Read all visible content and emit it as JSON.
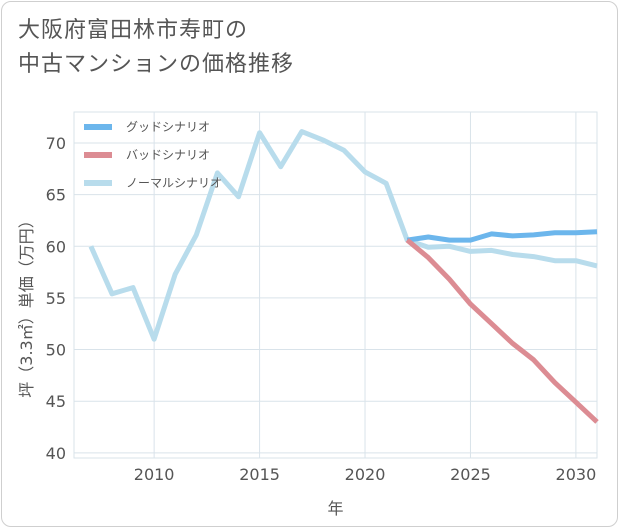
{
  "title_lines": [
    "大阪府富田林市寿町の",
    "中古マンションの価格推移"
  ],
  "chart_data": {
    "type": "line",
    "title": "大阪府富田林市寿町の中古マンションの価格推移",
    "xlabel": "年",
    "ylabel": "坪（3.3㎡）単価（万円）",
    "xlim": [
      2006.2,
      2031
    ],
    "ylim": [
      39.5,
      73
    ],
    "xticks": [
      2010,
      2015,
      2020,
      2025,
      2030
    ],
    "yticks": [
      40,
      45,
      50,
      55,
      60,
      65,
      70
    ],
    "legend_position": "top-left",
    "series": [
      {
        "name": "グッドシナリオ",
        "color": "#6cb6ec",
        "points": [
          [
            2022,
            60.6
          ],
          [
            2023,
            60.9
          ],
          [
            2024,
            60.6
          ],
          [
            2025,
            60.6
          ],
          [
            2026,
            61.2
          ],
          [
            2027,
            61.0
          ],
          [
            2028,
            61.1
          ],
          [
            2029,
            61.3
          ],
          [
            2030,
            61.3
          ],
          [
            2031,
            61.4
          ]
        ]
      },
      {
        "name": "バッドシナリオ",
        "color": "#dc8c93",
        "points": [
          [
            2022,
            60.6
          ],
          [
            2023,
            58.9
          ],
          [
            2024,
            56.8
          ],
          [
            2025,
            54.4
          ],
          [
            2026,
            52.5
          ],
          [
            2027,
            50.6
          ],
          [
            2028,
            49.0
          ],
          [
            2029,
            46.8
          ],
          [
            2030,
            44.9
          ],
          [
            2031,
            43.0
          ]
        ]
      },
      {
        "name": "ノーマルシナリオ",
        "color": "#b8dcec",
        "points": [
          [
            2007,
            60.0
          ],
          [
            2008,
            55.4
          ],
          [
            2009,
            56.0
          ],
          [
            2010,
            51.0
          ],
          [
            2011,
            57.3
          ],
          [
            2012,
            61.1
          ],
          [
            2013,
            67.1
          ],
          [
            2014,
            64.8
          ],
          [
            2015,
            71.0
          ],
          [
            2016,
            67.7
          ],
          [
            2017,
            71.1
          ],
          [
            2018,
            70.3
          ],
          [
            2019,
            69.3
          ],
          [
            2020,
            67.2
          ],
          [
            2021,
            66.1
          ],
          [
            2022,
            60.6
          ],
          [
            2023,
            59.9
          ],
          [
            2024,
            60.0
          ],
          [
            2025,
            59.5
          ],
          [
            2026,
            59.6
          ],
          [
            2027,
            59.2
          ],
          [
            2028,
            59.0
          ],
          [
            2029,
            58.6
          ],
          [
            2030,
            58.6
          ],
          [
            2031,
            58.1
          ]
        ]
      }
    ]
  }
}
